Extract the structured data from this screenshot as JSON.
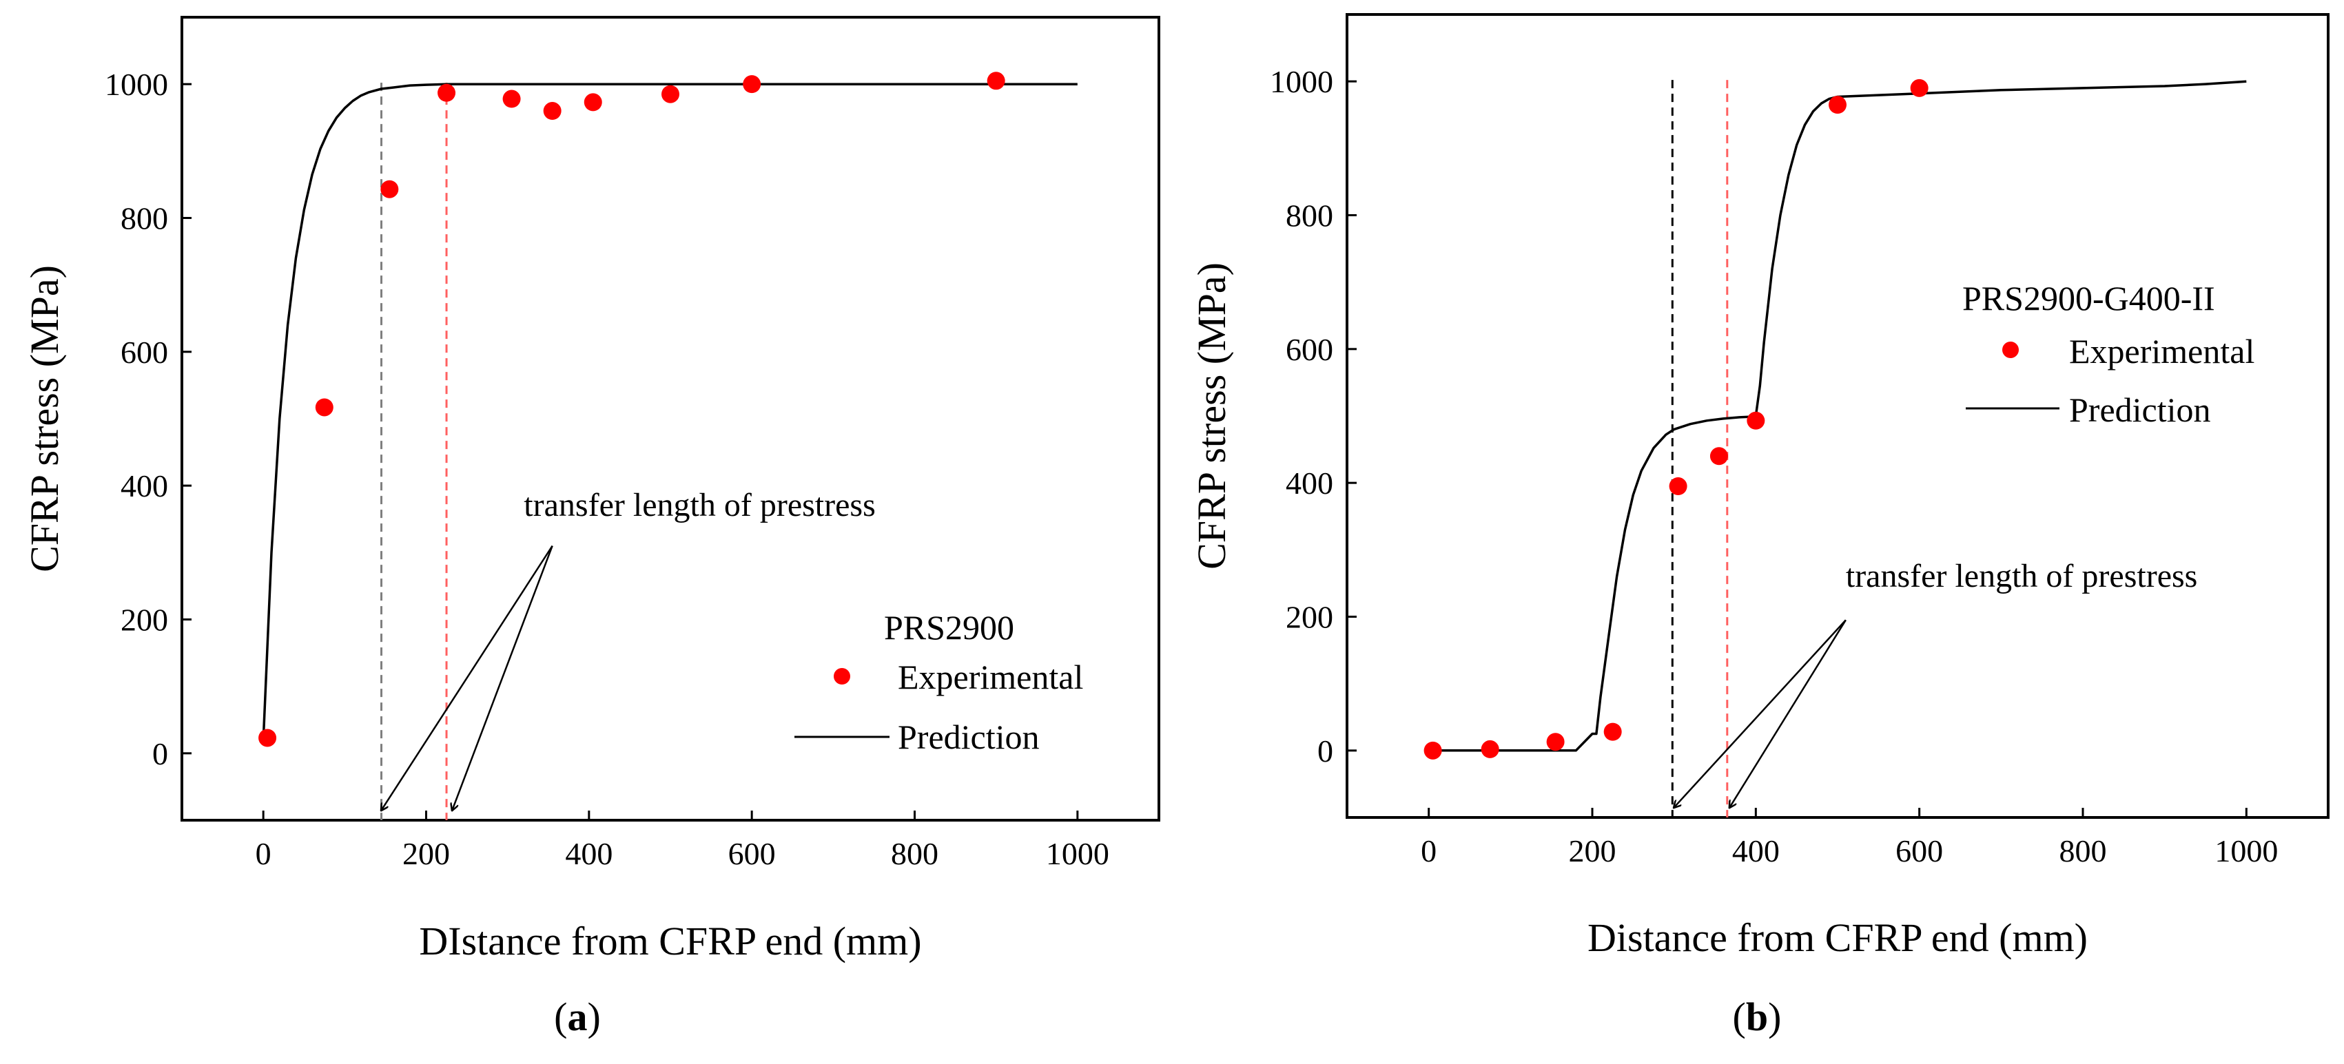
{
  "figure_labels": {
    "a": {
      "open": "(",
      "letter": "a",
      "close": ")"
    },
    "b": {
      "open": "(",
      "letter": "b",
      "close": ")"
    }
  },
  "chart_data": [
    {
      "type": "line",
      "panel": "a",
      "xlabel": "DIstance from CFRP end (mm)",
      "ylabel": "CFRP stress (MPa)",
      "xlim": [
        -100,
        1100
      ],
      "ylim": [
        -100,
        1100
      ],
      "xticks": [
        0,
        200,
        400,
        600,
        800,
        1000
      ],
      "yticks": [
        0,
        200,
        400,
        600,
        800,
        1000
      ],
      "legend": {
        "title": "PRS2900",
        "entries": [
          "Experimental",
          "Prediction"
        ],
        "placement": "bottom-right"
      },
      "series": [
        {
          "name": "Experimental",
          "kind": "scatter",
          "color": "#ff0000",
          "x": [
            5,
            75,
            155,
            225,
            305,
            355,
            405,
            500,
            600,
            900
          ],
          "y": [
            23,
            517,
            843,
            987,
            978,
            960,
            973,
            985,
            1000,
            1005
          ]
        },
        {
          "name": "Prediction",
          "kind": "line",
          "color": "#000000",
          "x": [
            0,
            5,
            10,
            20,
            30,
            40,
            50,
            60,
            70,
            80,
            90,
            100,
            110,
            120,
            130,
            145,
            160,
            180,
            200,
            225,
            250,
            300,
            400,
            600,
            800,
            1000
          ],
          "y": [
            20,
            160,
            300,
            500,
            640,
            740,
            812,
            865,
            903,
            930,
            950,
            964,
            975,
            983,
            988,
            993,
            995,
            998,
            999,
            1000,
            1000,
            1000,
            1000,
            1000,
            1000,
            1000
          ]
        }
      ],
      "reference_lines": [
        {
          "x": 145,
          "color": "#7f7f7f",
          "style": "dashed"
        },
        {
          "x": 225,
          "color": "#ff6060",
          "style": "dashed"
        }
      ],
      "annotation": {
        "text": "transfer length of prestress",
        "at": [
          320,
          355
        ],
        "arrow_origin": [
          355,
          310
        ],
        "arrow_targets": [
          [
            145,
            -85
          ],
          [
            232,
            -85
          ]
        ]
      }
    },
    {
      "type": "line",
      "panel": "b",
      "xlabel": "Distance from CFRP end (mm)",
      "ylabel": "CFRP stress (MPa)",
      "xlim": [
        -100,
        1100
      ],
      "ylim": [
        -100,
        1100
      ],
      "xticks": [
        0,
        200,
        400,
        600,
        800,
        1000
      ],
      "yticks": [
        0,
        200,
        400,
        600,
        800,
        1000
      ],
      "legend": {
        "title": "PRS2900-G400-II",
        "entries": [
          "Experimental",
          "Prediction"
        ],
        "placement": "middle-right"
      },
      "series": [
        {
          "name": "Experimental",
          "kind": "scatter",
          "color": "#ff0000",
          "x": [
            5,
            75,
            155,
            225,
            305,
            355,
            400,
            500,
            600
          ],
          "y": [
            0,
            2,
            13,
            28,
            395,
            440,
            493,
            965,
            990
          ]
        },
        {
          "name": "Prediction",
          "kind": "line",
          "color": "#000000",
          "x": [
            0,
            50,
            100,
            150,
            180,
            200,
            205,
            210,
            220,
            230,
            240,
            250,
            260,
            275,
            290,
            300,
            320,
            340,
            360,
            380,
            395,
            398,
            400,
            405,
            410,
            420,
            430,
            440,
            450,
            460,
            470,
            480,
            490,
            500,
            600,
            700,
            800,
            900,
            950,
            1000
          ],
          "y": [
            0,
            0,
            0,
            0,
            0,
            25,
            25,
            80,
            170,
            260,
            330,
            382,
            418,
            452,
            472,
            480,
            488,
            493,
            496,
            498,
            499,
            499,
            500,
            545,
            610,
            720,
            800,
            860,
            905,
            935,
            955,
            967,
            974,
            977,
            982,
            987,
            990,
            993,
            996,
            1000
          ]
        }
      ],
      "reference_lines": [
        {
          "x": 298,
          "color": "#000000",
          "style": "dashed"
        },
        {
          "x": 365,
          "color": "#ff6060",
          "style": "dashed"
        }
      ],
      "annotation": {
        "text": "transfer length of prestress",
        "at": [
          510,
          245
        ],
        "arrow_origin": [
          510,
          195
        ],
        "arrow_targets": [
          [
            300,
            -85
          ],
          [
            368,
            -85
          ]
        ]
      }
    }
  ]
}
